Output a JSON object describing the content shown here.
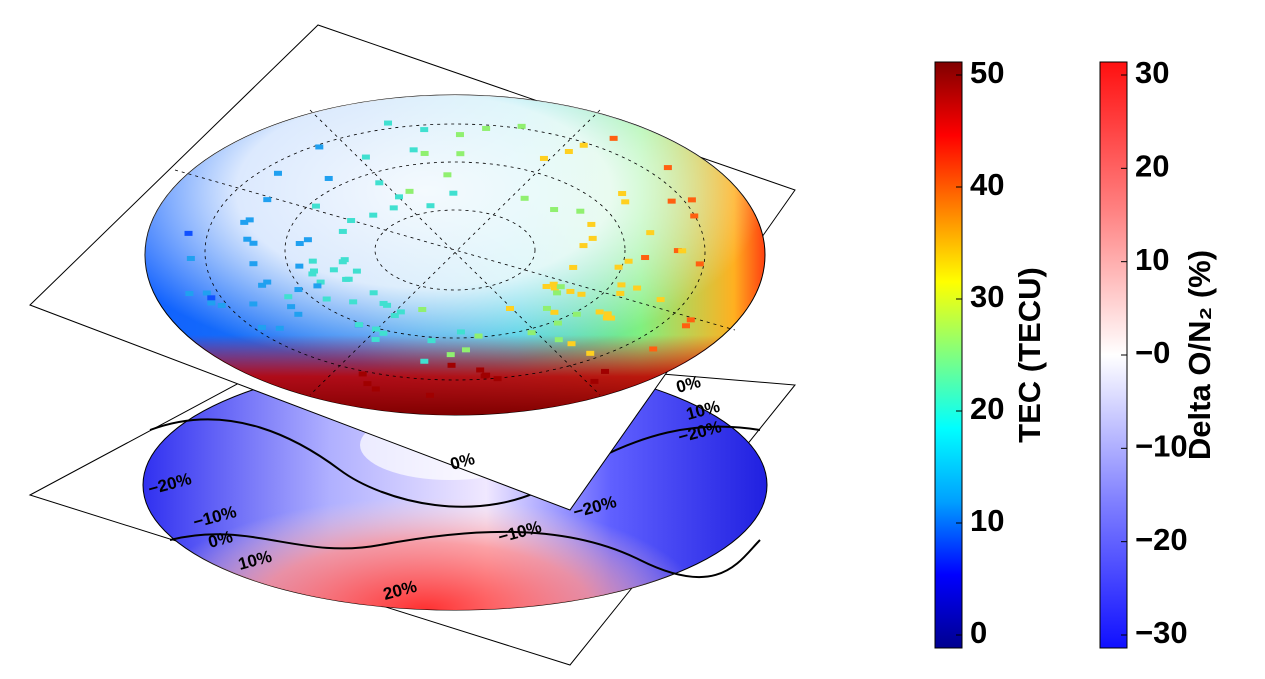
{
  "colorbars": [
    {
      "label": "TEC (TECU)",
      "colors": [
        "#00008f",
        "#0000ff",
        "#00a0ff",
        "#00ffff",
        "#80ff80",
        "#ffff00",
        "#ff8000",
        "#ff0000",
        "#800000"
      ],
      "ticks": [
        0,
        10,
        20,
        30,
        40,
        50
      ]
    },
    {
      "label": "Delta O/N₂ (%)",
      "colors": [
        "#1010ff",
        "#8080ff",
        "#ffffff",
        "#ff8080",
        "#ff1010"
      ],
      "ticks": [
        {
          "value": -30,
          "label": "−30"
        },
        {
          "value": -20,
          "label": "−20"
        },
        {
          "value": -10,
          "label": "−10"
        },
        {
          "value": 0,
          "label": "−0"
        },
        10,
        20,
        30
      ]
    }
  ],
  "contour_labels": [
    "0%",
    "10%",
    "−20%",
    "0%",
    "−20%",
    "−10%",
    "0%",
    "10%",
    "−20%",
    "−10%",
    "20%"
  ]
}
